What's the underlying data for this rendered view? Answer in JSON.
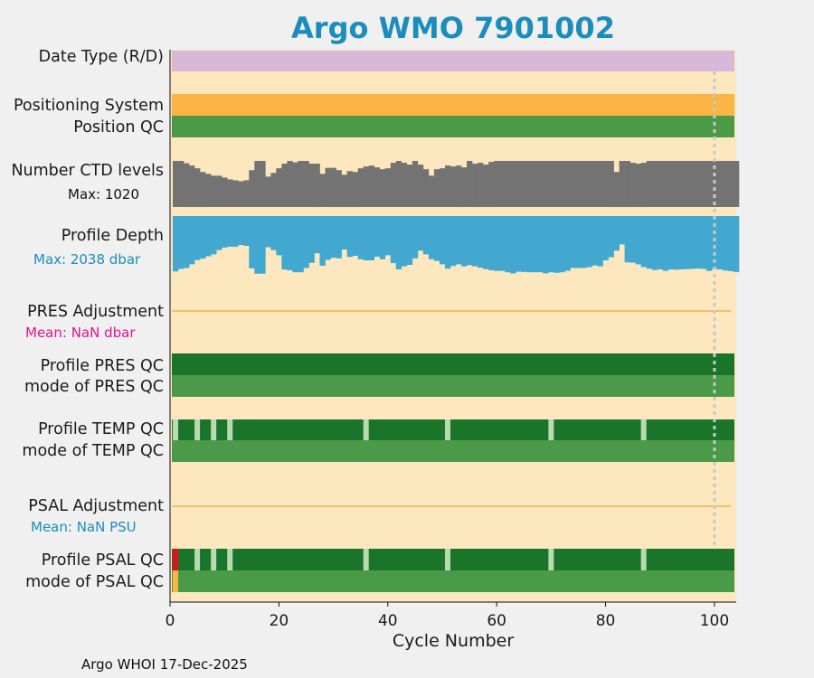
{
  "chart_data": {
    "type": "bar",
    "title": "Argo WMO 7901002",
    "xlabel": "Cycle Number",
    "xlim": [
      0,
      104
    ],
    "xticks": [
      0,
      20,
      40,
      60,
      80,
      100
    ],
    "xtick_labels": [
      "0",
      "20",
      "40",
      "60",
      "80",
      "100"
    ],
    "marker_cycle": 100,
    "footer": "Argo WHOI 17-Dec-2025",
    "rows": {
      "date_type": {
        "label": "Date Type (R/D)",
        "value": "R",
        "color": "#d8b8d8"
      },
      "positioning_system": {
        "label": "Positioning System",
        "color": "#fbb544"
      },
      "position_qc": {
        "label": "Position QC",
        "color": "#4a9a48"
      },
      "ctd_levels": {
        "label": "Number CTD levels",
        "max_text": "Max: 1020",
        "max": 1020,
        "color": "#737373",
        "values": [
          1000,
          1000,
          950,
          900,
          840,
          760,
          720,
          680,
          680,
          640,
          600,
          580,
          560,
          580,
          800,
          1000,
          1000,
          660,
          740,
          840,
          940,
          1000,
          970,
          1000,
          1000,
          940,
          940,
          720,
          850,
          850,
          800,
          700,
          780,
          760,
          840,
          880,
          900,
          860,
          820,
          840,
          960,
          1000,
          960,
          920,
          1000,
          920,
          820,
          680,
          820,
          840,
          900,
          880,
          900,
          860,
          1000,
          940,
          960,
          920,
          980,
          1000,
          1000,
          1000,
          1000,
          1000,
          1000,
          1000,
          1000,
          1000,
          1000,
          1000,
          1000,
          1000,
          1000,
          1000,
          1000,
          1000,
          1000,
          1000,
          1000,
          1000,
          1000,
          760,
          1000,
          1000,
          960,
          940,
          960,
          1000,
          1000,
          1000,
          1000,
          1000,
          1000,
          1000,
          1000,
          1000,
          1000,
          1000,
          1000,
          1000,
          1000,
          1000,
          1000,
          1000
        ]
      },
      "profile_depth": {
        "label": "Profile Depth",
        "max_text": "Max: 2038 dbar",
        "max": 2038,
        "color": "#42a8cf",
        "values": [
          1950,
          1860,
          1830,
          1700,
          1550,
          1500,
          1420,
          1350,
          1200,
          1110,
          1080,
          1080,
          1020,
          1050,
          1840,
          2030,
          2030,
          1100,
          1200,
          1380,
          1880,
          1910,
          1980,
          1980,
          1830,
          1650,
          1310,
          1750,
          1540,
          1470,
          1490,
          1180,
          1440,
          1400,
          1520,
          1560,
          1560,
          1430,
          1520,
          1380,
          1660,
          1880,
          1770,
          1720,
          1490,
          1220,
          1350,
          1520,
          1580,
          1700,
          1850,
          1760,
          1700,
          1770,
          1730,
          1770,
          1820,
          1870,
          1910,
          1930,
          1930,
          1980,
          2020,
          1960,
          1970,
          1980,
          1980,
          1980,
          2020,
          1980,
          2000,
          1980,
          1930,
          1830,
          1830,
          1830,
          1800,
          1740,
          1770,
          1560,
          1450,
          1220,
          1000,
          1630,
          1640,
          1700,
          1800,
          1850,
          1900,
          1880,
          1930,
          1880,
          1890,
          1880,
          1870,
          1860,
          1850,
          1860,
          1930,
          1860,
          1880,
          1920,
          1940,
          1970
        ]
      },
      "pres_adjustment": {
        "label": "PRES Adjustment",
        "mean_text": "Mean:  NaN dbar",
        "mean_color": "#e0158a",
        "line_color": "#f3b347"
      },
      "profile_pres_qc": {
        "label": "Profile PRES QC",
        "color": "#1a7429"
      },
      "mode_pres_qc": {
        "label": "mode of PRES QC",
        "color": "#4a9a48"
      },
      "profile_temp_qc": {
        "label": "Profile TEMP QC",
        "color": "#1a7429",
        "highlight_color": "#b8dab0",
        "highlight_cycles": [
          1,
          5,
          8,
          11,
          36,
          51,
          70,
          87
        ]
      },
      "mode_temp_qc": {
        "label": "mode of TEMP QC",
        "color": "#4a9a48"
      },
      "psal_adjustment": {
        "label": "PSAL Adjustment",
        "mean_text": "Mean:  NaN PSU",
        "mean_color": "#1b8dbd",
        "line_color": "#f3b347"
      },
      "profile_psal_qc": {
        "label": "Profile PSAL QC",
        "color": "#1a7429",
        "highlight_color": "#b8dab0",
        "highlight_cycles": [
          5,
          8,
          11,
          36,
          51,
          70,
          87
        ],
        "bad_cycles": [
          1
        ],
        "bad_color": "#e01020"
      },
      "mode_psal_qc": {
        "label": "mode of PSAL QC",
        "color": "#4a9a48",
        "flag_cycles": [
          1
        ],
        "flag_color": "#fbb544"
      }
    }
  }
}
